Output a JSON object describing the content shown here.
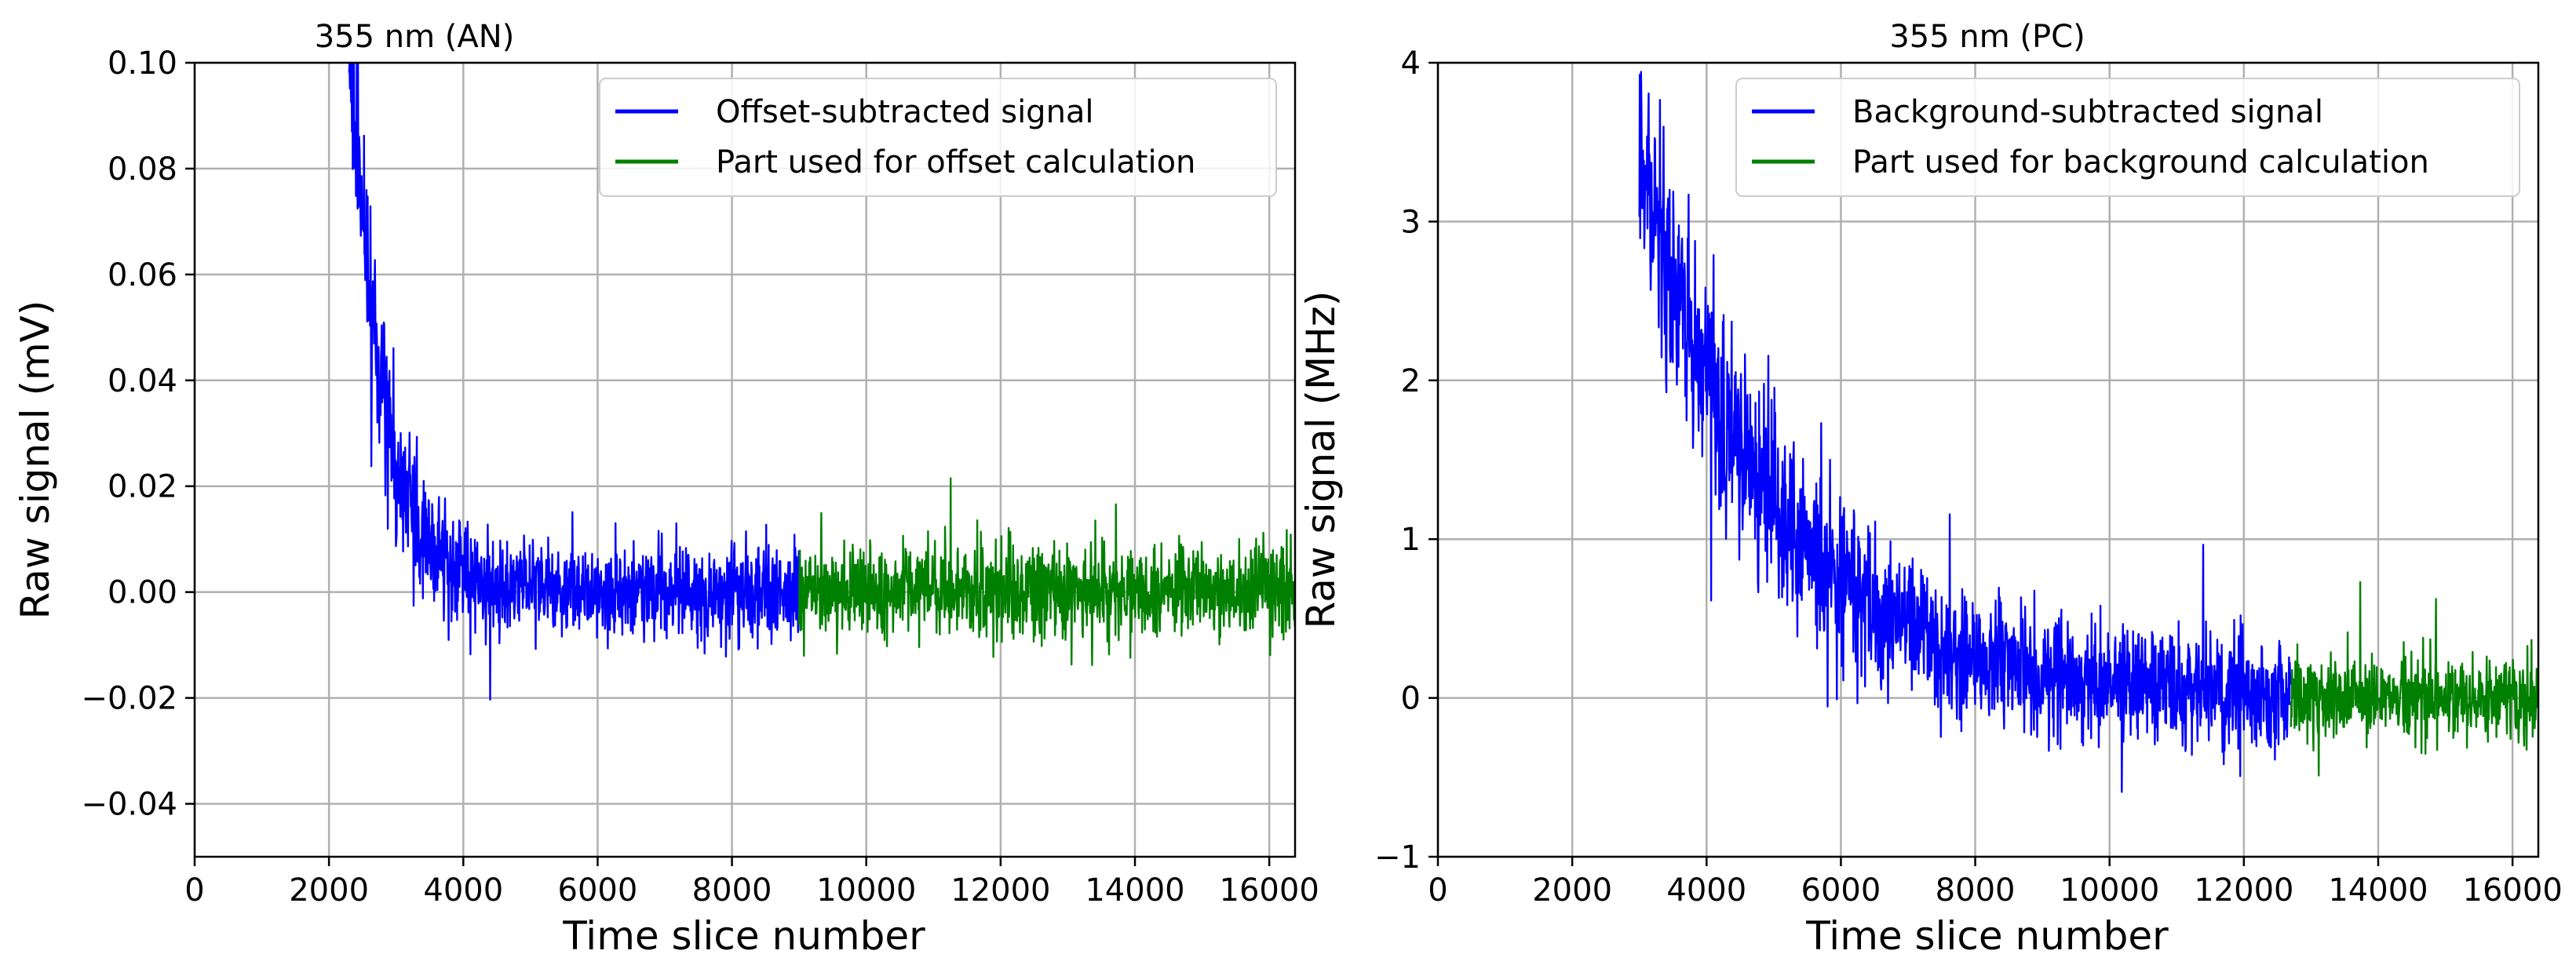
{
  "chart_data": [
    {
      "type": "line",
      "title": "355 nm (AN)",
      "xlabel": "Time slice number",
      "ylabel": "Raw signal (mV)",
      "xlim": [
        0,
        16384
      ],
      "ylim": [
        -0.05,
        0.1
      ],
      "grid": true,
      "legend_position": "top-right",
      "x_ticks": [
        0,
        2000,
        4000,
        6000,
        8000,
        10000,
        12000,
        14000,
        16000
      ],
      "x_tick_labels": [
        "0",
        "2000",
        "4000",
        "6000",
        "8000",
        "10000",
        "12000",
        "14000",
        "16000"
      ],
      "y_ticks": [
        -0.04,
        -0.02,
        0.0,
        0.02,
        0.04,
        0.06,
        0.08,
        0.1
      ],
      "y_tick_labels": [
        "−0.04",
        "−0.02",
        "0.00",
        "0.02",
        "0.04",
        "0.06",
        "0.08",
        "0.10"
      ],
      "series": [
        {
          "name": "Offset-subtracted signal",
          "color": "#0000ff",
          "x_range": [
            2300,
            9000
          ],
          "decay": {
            "amplitude": 0.105,
            "tau": 500,
            "start": 2300,
            "offset": 0.0
          },
          "noise": {
            "std": 0.0045,
            "spike_prob": 0.01,
            "spike_scale": 2.4
          }
        },
        {
          "name": "Part used for offset calculation",
          "color": "#008000",
          "x_range": [
            9000,
            16384
          ],
          "decay": {
            "amplitude": 0.0,
            "tau": 1,
            "start": 9000,
            "offset": 0.0
          },
          "noise": {
            "std": 0.0045,
            "spike_prob": 0.01,
            "spike_scale": 2.6
          }
        }
      ]
    },
    {
      "type": "line",
      "title": "355 nm (PC)",
      "xlabel": "Time slice number",
      "ylabel": "Raw signal (MHz)",
      "xlim": [
        0,
        16384
      ],
      "ylim": [
        -1,
        4
      ],
      "grid": true,
      "legend_position": "top-right",
      "x_ticks": [
        0,
        2000,
        4000,
        6000,
        8000,
        10000,
        12000,
        14000,
        16000
      ],
      "x_tick_labels": [
        "0",
        "2000",
        "4000",
        "6000",
        "8000",
        "10000",
        "12000",
        "14000",
        "16000"
      ],
      "y_ticks": [
        -1,
        0,
        1,
        2,
        3,
        4
      ],
      "y_tick_labels": [
        "−1",
        "0",
        "1",
        "2",
        "3",
        "4"
      ],
      "series": [
        {
          "name": "Background-subtracted signal",
          "color": "#0000ff",
          "x_range": [
            3000,
            12700
          ],
          "decay": {
            "amplitude": 3.4,
            "tau": 1900,
            "start": 3000,
            "offset": 0.05
          },
          "noise": {
            "std": 0.16,
            "spike_prob": 0.012,
            "spike_scale": 2.5
          }
        },
        {
          "name": "Part used for background calculation",
          "color": "#008000",
          "x_range": [
            12700,
            16384
          ],
          "decay": {
            "amplitude": 0.0,
            "tau": 1,
            "start": 12700,
            "offset": 0.0
          },
          "noise": {
            "std": 0.13,
            "spike_prob": 0.01,
            "spike_scale": 2.6
          }
        }
      ]
    }
  ]
}
